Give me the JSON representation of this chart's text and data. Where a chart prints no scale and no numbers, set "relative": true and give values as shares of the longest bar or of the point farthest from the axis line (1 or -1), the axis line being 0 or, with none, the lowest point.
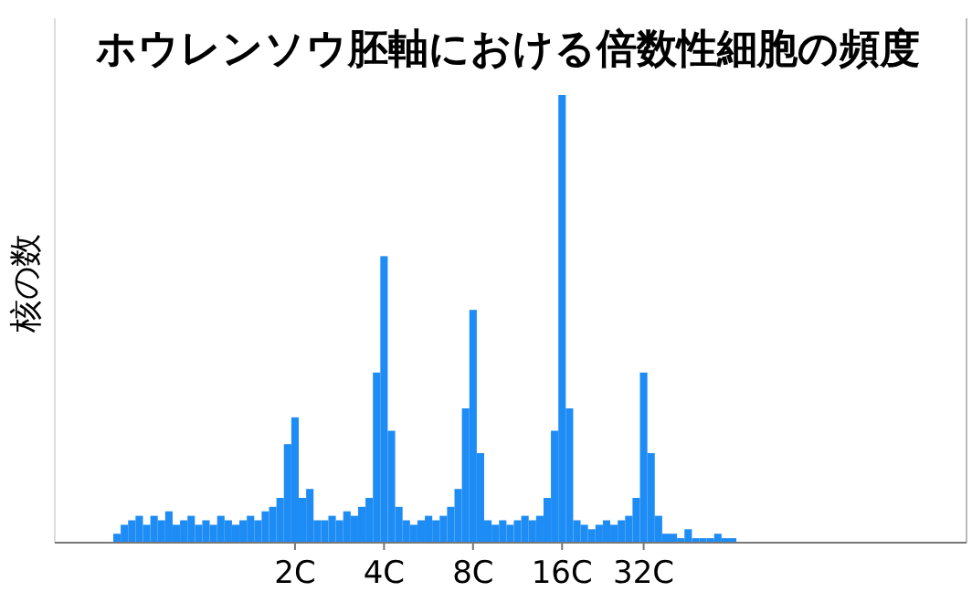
{
  "chart_data": {
    "type": "bar",
    "title": "ホウレンソウ胚軸における倍数性細胞の頻度",
    "ylabel": "核の数",
    "relative": true,
    "color": "#1e8cf5",
    "categories": [
      null,
      null,
      null,
      null,
      null,
      null,
      null,
      null,
      null,
      null,
      null,
      null,
      null,
      null,
      null,
      null,
      null,
      null,
      null,
      null,
      null,
      null,
      null,
      null,
      "2C",
      null,
      null,
      null,
      null,
      null,
      null,
      null,
      null,
      null,
      null,
      null,
      "4C",
      null,
      null,
      null,
      null,
      null,
      null,
      null,
      null,
      null,
      null,
      null,
      "8C",
      null,
      null,
      null,
      null,
      null,
      null,
      null,
      null,
      null,
      null,
      null,
      "16C",
      null,
      null,
      null,
      null,
      null,
      null,
      null,
      null,
      null,
      null,
      "32C",
      null,
      null,
      null,
      null,
      null,
      null,
      null,
      null,
      null,
      null,
      null,
      null
    ],
    "values": [
      0.02,
      0.04,
      0.05,
      0.06,
      0.04,
      0.06,
      0.05,
      0.07,
      0.04,
      0.05,
      0.06,
      0.04,
      0.05,
      0.04,
      0.06,
      0.05,
      0.04,
      0.05,
      0.06,
      0.05,
      0.07,
      0.08,
      0.1,
      0.22,
      0.28,
      0.1,
      0.12,
      0.05,
      0.05,
      0.06,
      0.05,
      0.07,
      0.06,
      0.08,
      0.1,
      0.38,
      0.64,
      0.25,
      0.08,
      0.05,
      0.04,
      0.05,
      0.06,
      0.05,
      0.06,
      0.08,
      0.12,
      0.3,
      0.52,
      0.2,
      0.05,
      0.04,
      0.05,
      0.04,
      0.05,
      0.06,
      0.05,
      0.06,
      0.1,
      0.25,
      1,
      0.3,
      0.05,
      0.04,
      0.03,
      0.04,
      0.05,
      0.04,
      0.05,
      0.06,
      0.1,
      0.38,
      0.2,
      0.06,
      0.02,
      0.02,
      0.01,
      0.03,
      0.01,
      0.01,
      0.01,
      0.02,
      0.01,
      0.01
    ]
  }
}
